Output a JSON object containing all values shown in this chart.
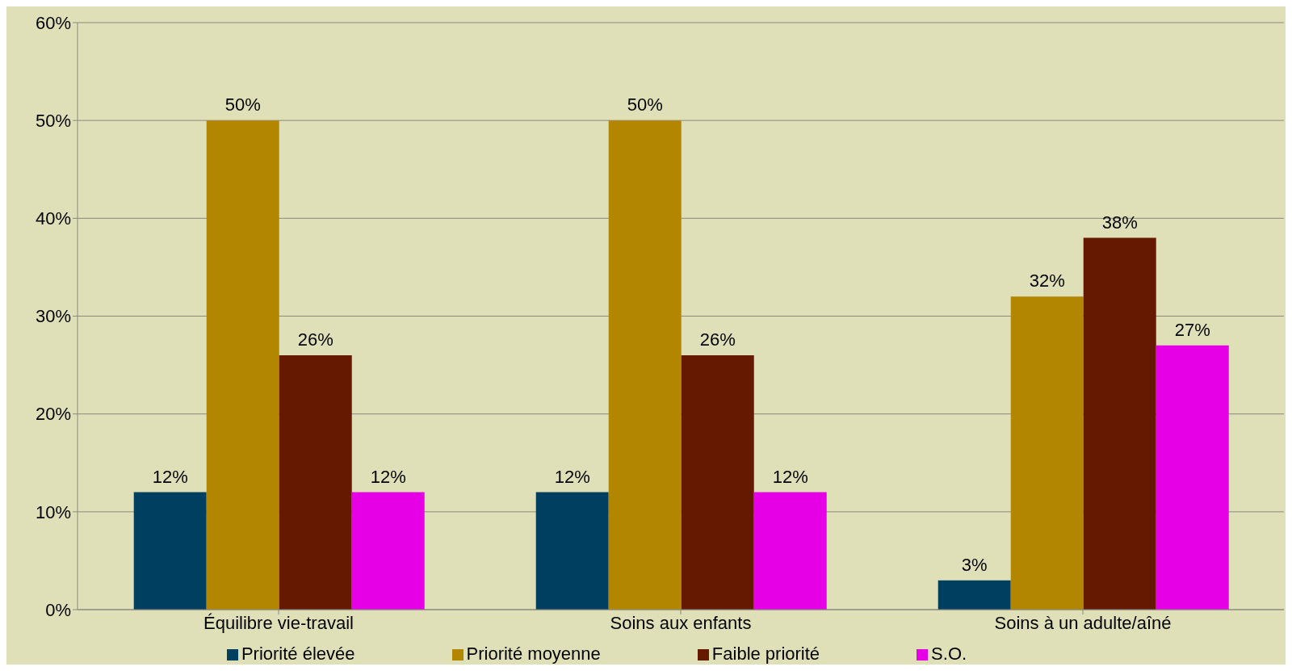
{
  "chart_data": {
    "type": "bar",
    "categories": [
      "Équilibre vie-travail",
      "Soins aux enfants",
      "Soins à un adulte/aîné"
    ],
    "series": [
      {
        "name": "Priorité élevée",
        "color": "#003f5f",
        "values": [
          12,
          12,
          3
        ],
        "value_labels": [
          "12%",
          "12%",
          "3%"
        ]
      },
      {
        "name": "Priorité moyenne",
        "color": "#b38600",
        "values": [
          50,
          50,
          32
        ],
        "value_labels": [
          "50%",
          "50%",
          "32%"
        ]
      },
      {
        "name": "Faible priorité",
        "color": "#651900",
        "values": [
          26,
          26,
          38
        ],
        "value_labels": [
          "26%",
          "26%",
          "38%"
        ]
      },
      {
        "name": "S.O.",
        "color": "#e600e6",
        "values": [
          12,
          12,
          27
        ],
        "value_labels": [
          "12%",
          "12%",
          "27%"
        ]
      }
    ],
    "ylim": [
      0,
      60
    ],
    "yticks": [
      {
        "value": 0,
        "label": "0%"
      },
      {
        "value": 10,
        "label": "10%"
      },
      {
        "value": 20,
        "label": "20%"
      },
      {
        "value": 30,
        "label": "30%"
      },
      {
        "value": 40,
        "label": "40%"
      },
      {
        "value": 50,
        "label": "50%"
      },
      {
        "value": 60,
        "label": "60%"
      }
    ],
    "grid": "y",
    "legend": "bottom"
  }
}
